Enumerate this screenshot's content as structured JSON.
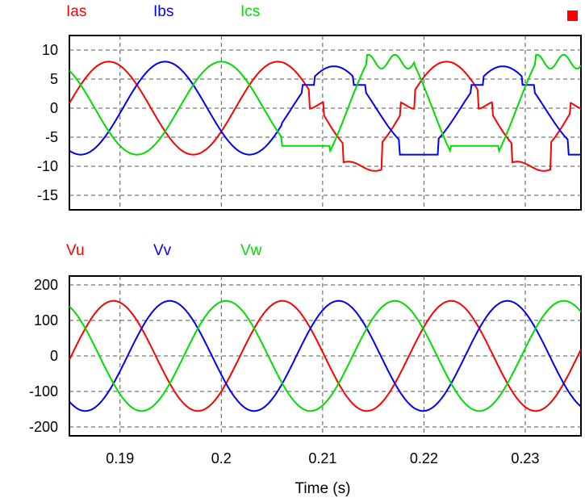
{
  "chart_data": [
    {
      "type": "line",
      "title": "",
      "xlabel": "",
      "ylabel": "",
      "xlim": [
        0.185,
        0.2355
      ],
      "ylim": [
        -17.5,
        12.5
      ],
      "yticks": [
        10,
        5,
        0,
        -5,
        -10,
        -15
      ],
      "ytick_labels": [
        "10",
        "5",
        "0",
        "-5",
        "-10",
        "-15"
      ],
      "xtick_values": [
        0.19,
        0.2,
        0.21,
        0.22,
        0.23
      ],
      "grid": true,
      "legend_placement": "top-left, above plot",
      "series": [
        {
          "name": "Ias",
          "color": "#ff0000",
          "amplitude": 8,
          "phase_deg": -30
        },
        {
          "name": "Ibs",
          "color": "#0000ff",
          "amplitude": 8,
          "phase_deg": -150
        },
        {
          "name": "Ics",
          "color": "#00dd00",
          "amplitude": 8,
          "phase_deg": 90
        }
      ],
      "frequency_hz": 60,
      "fault_note": "waveforms distorted after about t = 0.206 s",
      "marker_color": "#ff0000"
    },
    {
      "type": "line",
      "title": "",
      "xlabel": "Time (s)",
      "ylabel": "",
      "xlim": [
        0.185,
        0.2355
      ],
      "ylim": [
        -225,
        225
      ],
      "yticks": [
        200,
        100,
        0,
        -100,
        -200
      ],
      "ytick_labels": [
        "200",
        "100",
        "0",
        "-100",
        "-200"
      ],
      "xticks": [
        0.19,
        0.2,
        0.21,
        0.22,
        0.23
      ],
      "xtick_labels": [
        "0.19",
        "0.2",
        "0.21",
        "0.22",
        "0.23"
      ],
      "grid": true,
      "legend_placement": "top-left, above plot",
      "series": [
        {
          "name": "Vu",
          "color": "#ff0000",
          "amplitude": 155,
          "phase_deg": -40
        },
        {
          "name": "Vv",
          "color": "#0000ff",
          "amplitude": 155,
          "phase_deg": -160
        },
        {
          "name": "Vw",
          "color": "#00dd00",
          "amplitude": 155,
          "phase_deg": 80
        }
      ],
      "frequency_hz": 60
    }
  ]
}
